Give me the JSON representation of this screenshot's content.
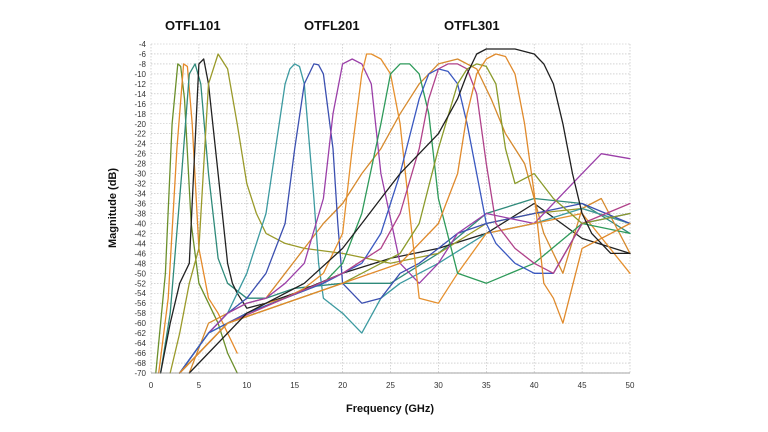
{
  "chart_data": {
    "type": "line",
    "xlabel": "Frequency (GHz)",
    "ylabel": "Magnitude (dB)",
    "xlim": [
      0,
      50
    ],
    "ylim": [
      -70,
      -4
    ],
    "x_ticks": [
      "0",
      "5",
      "10",
      "15",
      "20",
      "25",
      "30",
      "35",
      "40",
      "45",
      "50"
    ],
    "y_ticks": [
      "-4",
      "-6",
      "-8",
      "-10",
      "-12",
      "-14",
      "-16",
      "-18",
      "-20",
      "-22",
      "-24",
      "-26",
      "-28",
      "-30",
      "-32",
      "-34",
      "-36",
      "-38",
      "-40",
      "-42",
      "-44",
      "-46",
      "-48",
      "-50",
      "-52",
      "-54",
      "-56",
      "-58",
      "-60",
      "-62",
      "-64",
      "-66",
      "-68",
      "-70"
    ],
    "grid": true,
    "annotations": [
      "OTFL101",
      "OTFL201",
      "OTFL301"
    ],
    "series": [
      {
        "color": "#6b8f2a",
        "x": [
          0.5,
          1.5,
          2.2,
          2.8,
          3.1,
          3.5,
          4.2,
          5,
          6,
          7,
          8,
          9
        ],
        "y": [
          -70,
          -50,
          -20,
          -8,
          -8.5,
          -15,
          -40,
          -52,
          -56,
          -60,
          -66,
          -70
        ]
      },
      {
        "color": "#e58a2a",
        "x": [
          0.8,
          1.8,
          2.7,
          3.4,
          3.8,
          4.3,
          5,
          6,
          7,
          8,
          9
        ],
        "y": [
          -70,
          -55,
          -25,
          -8,
          -8.5,
          -20,
          -45,
          -55,
          -58,
          -62,
          -66
        ]
      },
      {
        "color": "#2f8a7a",
        "x": [
          1,
          2,
          3.2,
          4,
          4.6,
          5.2,
          6,
          7,
          8,
          10,
          12,
          15,
          20,
          25,
          30,
          35,
          40,
          45,
          50
        ],
        "y": [
          -70,
          -58,
          -30,
          -10,
          -8,
          -12,
          -30,
          -47,
          -52,
          -55,
          -55,
          -53,
          -52,
          -52,
          -46,
          -38,
          -35,
          -36,
          -42
        ]
      },
      {
        "color": "#222222",
        "x": [
          1,
          2,
          3,
          4,
          5,
          5.5,
          6,
          7,
          8,
          8.5,
          9,
          10,
          12,
          15,
          20,
          25,
          30,
          35,
          40,
          45,
          50
        ],
        "y": [
          -70,
          -60,
          -52,
          -48,
          -8,
          -7,
          -12,
          -30,
          -48,
          -52,
          -54,
          -57,
          -56,
          -54,
          -50,
          -47,
          -45,
          -42,
          -36,
          -43,
          -46
        ]
      },
      {
        "color": "#9a9a2a",
        "x": [
          2,
          3,
          4,
          5,
          6,
          7,
          8,
          9,
          10,
          11,
          12,
          14,
          16,
          20,
          25,
          30,
          35,
          40,
          45,
          50
        ],
        "y": [
          -70,
          -62,
          -52,
          -45,
          -12,
          -6,
          -9,
          -20,
          -32,
          -38,
          -42,
          -44,
          -45,
          -46,
          -48,
          -46,
          -40,
          -38,
          -37,
          -40
        ]
      },
      {
        "color": "#d68a2e",
        "x": [
          4,
          6,
          8,
          10,
          12,
          14,
          16,
          18,
          20,
          22,
          24,
          26,
          28,
          30,
          32,
          34,
          35.5,
          37,
          39,
          41,
          43,
          45,
          47,
          50
        ],
        "y": [
          -70,
          -60,
          -58,
          -56,
          -55,
          -50,
          -45,
          -40,
          -36,
          -30,
          -25,
          -18,
          -12,
          -8,
          -7,
          -9,
          -15,
          -22,
          -28,
          -42,
          -50,
          -37,
          -35,
          -46
        ]
      },
      {
        "color": "#3c9aa0",
        "x": [
          3,
          6,
          8,
          10,
          12,
          13,
          14,
          14.5,
          15,
          15.5,
          16,
          17,
          17.5,
          18,
          20,
          22,
          24,
          26,
          28,
          30,
          35,
          40,
          45,
          50
        ],
        "y": [
          -70,
          -62,
          -58,
          -50,
          -38,
          -25,
          -12,
          -9,
          -8,
          -8.5,
          -12,
          -35,
          -48,
          -55,
          -58,
          -62,
          -55,
          -52,
          -50,
          -48,
          -42,
          -40,
          -37,
          -40
        ]
      },
      {
        "color": "#3b4fb0",
        "x": [
          3,
          6,
          8,
          10,
          12,
          14,
          15,
          16,
          17,
          17.5,
          18,
          19,
          19.5,
          20,
          22,
          24,
          26,
          28,
          30,
          32,
          35,
          40,
          45,
          50
        ],
        "y": [
          -70,
          -62,
          -58,
          -55,
          -50,
          -40,
          -25,
          -12,
          -8,
          -8.2,
          -10,
          -25,
          -40,
          -52,
          -56,
          -55,
          -50,
          -48,
          -45,
          -42,
          -40,
          -38,
          -36,
          -40
        ]
      },
      {
        "color": "#9b3fa8",
        "x": [
          3,
          6,
          8,
          10,
          12,
          14,
          16,
          18,
          19,
          20,
          21,
          22,
          23,
          24,
          26,
          28,
          30,
          32,
          35,
          40,
          45,
          47,
          50
        ],
        "y": [
          -70,
          -62,
          -58,
          -56,
          -55,
          -52,
          -48,
          -35,
          -18,
          -8,
          -7,
          -8,
          -12,
          -30,
          -48,
          -52,
          -48,
          -42,
          -38,
          -40,
          -30,
          -26,
          -27
        ]
      },
      {
        "color": "#e5902e",
        "x": [
          3,
          6,
          8,
          10,
          12,
          14,
          16,
          18,
          20,
          21,
          22,
          22.5,
          23,
          24,
          25,
          26,
          27,
          28,
          30,
          32,
          35,
          40,
          45,
          50
        ],
        "y": [
          -70,
          -64,
          -60,
          -58,
          -56,
          -55,
          -53,
          -50,
          -42,
          -25,
          -10,
          -6,
          -6,
          -7,
          -10,
          -20,
          -38,
          -55,
          -56,
          -50,
          -42,
          -40,
          -38,
          -50
        ]
      },
      {
        "color": "#2e9a5a",
        "x": [
          3,
          6,
          10,
          14,
          18,
          20,
          22,
          24,
          25,
          26,
          27,
          28,
          29,
          30,
          32,
          35,
          40,
          45,
          50
        ],
        "y": [
          -70,
          -62,
          -58,
          -55,
          -52,
          -48,
          -38,
          -20,
          -10,
          -8,
          -8,
          -10,
          -18,
          -35,
          -50,
          -52,
          -48,
          -40,
          -42
        ]
      },
      {
        "color": "#3a58c0",
        "x": [
          3,
          6,
          10,
          14,
          18,
          22,
          24,
          26,
          28,
          29,
          30,
          31,
          32,
          33,
          34,
          35,
          36,
          38,
          40,
          42,
          45,
          50
        ],
        "y": [
          -70,
          -62,
          -58,
          -55,
          -52,
          -48,
          -42,
          -30,
          -15,
          -10,
          -9,
          -9.5,
          -12,
          -20,
          -30,
          -40,
          -44,
          -48,
          -50,
          -50,
          -40,
          -38
        ]
      },
      {
        "color": "#b0428a",
        "x": [
          3,
          8,
          14,
          20,
          24,
          26,
          28,
          29,
          30,
          31,
          32,
          33,
          34,
          35,
          36,
          38,
          40,
          42,
          45,
          50
        ],
        "y": [
          -70,
          -60,
          -55,
          -50,
          -45,
          -38,
          -25,
          -15,
          -9,
          -8,
          -8,
          -9,
          -14,
          -28,
          -40,
          -45,
          -48,
          -50,
          -40,
          -36
        ]
      },
      {
        "color": "#8a9a2a",
        "x": [
          3,
          8,
          14,
          20,
          26,
          28,
          30,
          32,
          33,
          34,
          35,
          36,
          37,
          38,
          40,
          42,
          45,
          50
        ],
        "y": [
          -70,
          -60,
          -56,
          -52,
          -46,
          -40,
          -25,
          -12,
          -9,
          -8,
          -8.5,
          -12,
          -25,
          -32,
          -30,
          -35,
          -40,
          -38
        ]
      },
      {
        "color": "#e08a2c",
        "x": [
          3,
          8,
          14,
          20,
          26,
          30,
          32,
          33,
          34,
          35,
          36,
          37,
          38,
          39,
          40,
          41,
          42,
          43,
          45,
          50
        ],
        "y": [
          -70,
          -60,
          -56,
          -52,
          -48,
          -40,
          -30,
          -18,
          -10,
          -7,
          -6,
          -6.5,
          -10,
          -20,
          -34,
          -52,
          -55,
          -60,
          -45,
          -40
        ]
      },
      {
        "color": "#1f1f1f",
        "x": [
          4,
          10,
          16,
          20,
          22,
          24,
          26,
          28,
          30,
          32,
          33,
          34,
          35,
          36,
          37,
          38,
          39,
          40,
          41,
          42,
          43,
          44,
          45,
          46,
          47,
          48,
          50
        ],
        "y": [
          -70,
          -58,
          -52,
          -45,
          -40,
          -35,
          -30,
          -26,
          -22,
          -15,
          -10,
          -6,
          -5,
          -5,
          -5,
          -5,
          -5.5,
          -6,
          -8,
          -12,
          -20,
          -30,
          -38,
          -42,
          -44,
          -46,
          -46
        ]
      }
    ]
  }
}
